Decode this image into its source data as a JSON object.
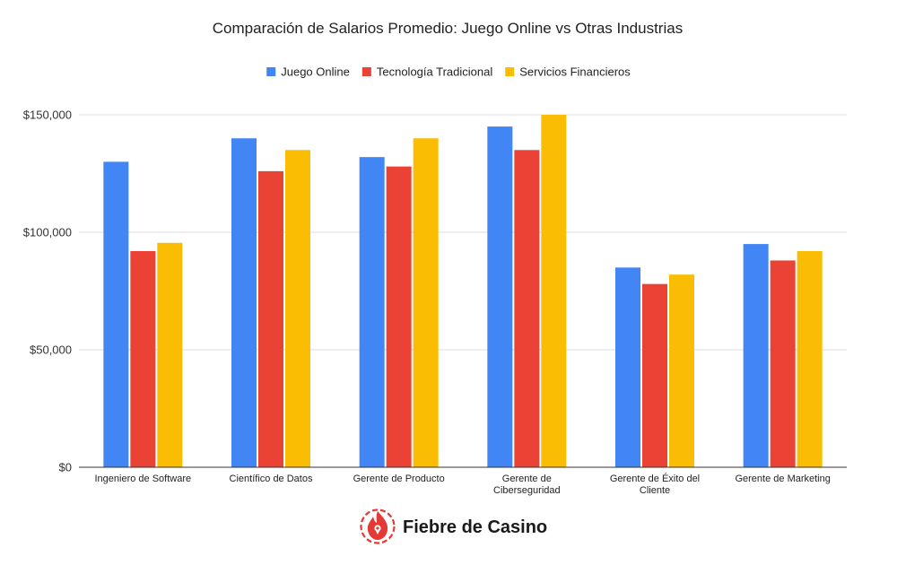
{
  "chart_data": {
    "type": "bar",
    "title": "Comparación de Salarios Promedio: Juego Online vs Otras Industrias",
    "categories": [
      [
        "Ingeniero de Software"
      ],
      [
        "Científico de Datos"
      ],
      [
        "Gerente de Producto"
      ],
      [
        "Gerente de",
        "Ciberseguridad"
      ],
      [
        "Gerente de Éxito del",
        "Cliente"
      ],
      [
        "Gerente de Marketing"
      ]
    ],
    "series": [
      {
        "name": "Juego Online",
        "color": "#4285f4",
        "values": [
          130000,
          140000,
          132000,
          145000,
          85000,
          95000
        ]
      },
      {
        "name": "Tecnología Tradicional",
        "color": "#ea4335",
        "values": [
          92000,
          126000,
          128000,
          135000,
          78000,
          88000
        ]
      },
      {
        "name": "Servicios Financieros",
        "color": "#fbbc04",
        "values": [
          95500,
          135000,
          140000,
          150000,
          82000,
          92000
        ]
      }
    ],
    "ylim": [
      0,
      150000
    ],
    "yticks": [
      {
        "value": 0,
        "label": "$0"
      },
      {
        "value": 50000,
        "label": "$50,000"
      },
      {
        "value": 100000,
        "label": "$100,000"
      },
      {
        "value": 150000,
        "label": "$150,000"
      }
    ],
    "grid": true,
    "legend_position": "top-center",
    "xlabel": "",
    "ylabel": ""
  },
  "brand": {
    "name": "Fiebre de Casino",
    "logo_icon": "flame-location-pin-icon",
    "logo_color": "#e53935"
  }
}
